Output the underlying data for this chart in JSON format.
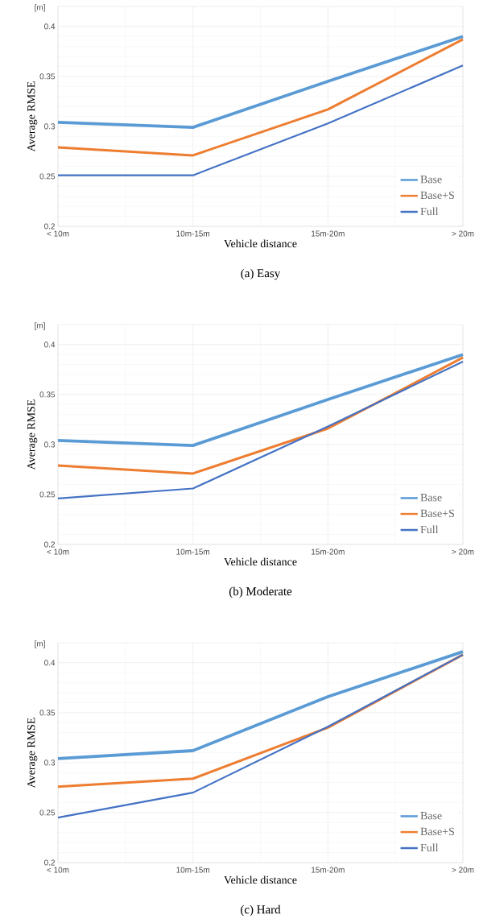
{
  "chart_data": [
    {
      "type": "line",
      "title": "(a) Easy",
      "xlabel": "Vehicle distance",
      "ylabel": "Average RMSE",
      "annotations": [
        "[m]"
      ],
      "categories": [
        "< 10m",
        "10m-15m",
        "15m-20m",
        "> 20m"
      ],
      "series": [
        {
          "name": "Base",
          "color": "#5b9bd5",
          "values": [
            0.304,
            0.299,
            0.345,
            0.39
          ]
        },
        {
          "name": "Base+S",
          "color": "#ed7d31",
          "values": [
            0.279,
            0.271,
            0.317,
            0.387
          ]
        },
        {
          "name": "Full",
          "color": "#4472c4",
          "values": [
            0.251,
            0.251,
            0.303,
            0.361
          ]
        }
      ],
      "ylim": [
        0.2,
        0.42
      ],
      "yticks": [
        0.2,
        0.25,
        0.3,
        0.35,
        0.4
      ],
      "grid": true,
      "legend": "bottom right"
    },
    {
      "type": "line",
      "title": "(b) Moderate",
      "xlabel": "Vehicle distance",
      "ylabel": "Average RMSE",
      "annotations": [
        "[m]"
      ],
      "categories": [
        "< 10m",
        "10m-15m",
        "15m-20m",
        "> 20m"
      ],
      "series": [
        {
          "name": "Base",
          "color": "#5b9bd5",
          "values": [
            0.304,
            0.299,
            0.345,
            0.39
          ]
        },
        {
          "name": "Base+S",
          "color": "#ed7d31",
          "values": [
            0.279,
            0.271,
            0.316,
            0.387
          ]
        },
        {
          "name": "Full",
          "color": "#4472c4",
          "values": [
            0.246,
            0.256,
            0.318,
            0.383
          ]
        }
      ],
      "ylim": [
        0.2,
        0.42
      ],
      "yticks": [
        0.2,
        0.25,
        0.3,
        0.35,
        0.4
      ],
      "grid": true,
      "legend": "bottom right"
    },
    {
      "type": "line",
      "title": "(c) Hard",
      "xlabel": "Vehicle distance",
      "ylabel": "Average RMSE",
      "annotations": [
        "[m]"
      ],
      "categories": [
        "< 10m",
        "10m-15m",
        "15m-20m",
        "> 20m"
      ],
      "series": [
        {
          "name": "Base",
          "color": "#5b9bd5",
          "values": [
            0.304,
            0.312,
            0.366,
            0.411
          ]
        },
        {
          "name": "Base+S",
          "color": "#ed7d31",
          "values": [
            0.276,
            0.284,
            0.335,
            0.408
          ]
        },
        {
          "name": "Full",
          "color": "#4472c4",
          "values": [
            0.245,
            0.27,
            0.336,
            0.408
          ]
        }
      ],
      "ylim": [
        0.2,
        0.42
      ],
      "yticks": [
        0.2,
        0.25,
        0.3,
        0.35,
        0.4
      ],
      "grid": true,
      "legend": "bottom right"
    }
  ]
}
